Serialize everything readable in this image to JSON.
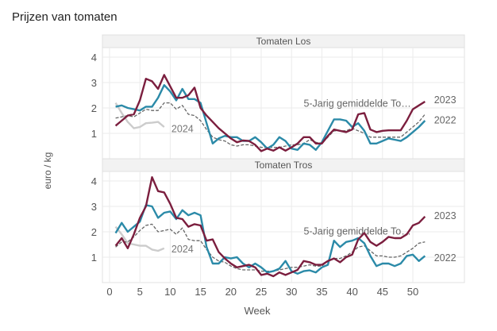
{
  "chart_data": {
    "type": "line",
    "title": "Prijzen van tomaten",
    "xlabel": "Week",
    "ylabel": "euro / kg",
    "xlim": [
      0,
      52
    ],
    "ylim": [
      0,
      4.3
    ],
    "x_ticks": [
      0,
      5,
      10,
      15,
      20,
      25,
      30,
      35,
      40,
      45,
      50
    ],
    "y_ticks": [
      1,
      2,
      3,
      4
    ],
    "grid": true,
    "colors": {
      "2023": "#7b1e3e",
      "2022": "#2b8aa8",
      "avg": "#666666",
      "2024": "#cccccc"
    },
    "panels": [
      {
        "title": "Tomaten Los",
        "series": [
          {
            "name": "2023",
            "label": "2023",
            "start_week": 1,
            "values": [
              1.3,
              1.5,
              1.7,
              1.75,
              2.3,
              3.15,
              3.05,
              2.75,
              3.3,
              2.85,
              2.4,
              2.4,
              2.5,
              2.8,
              2.0,
              1.7,
              1.45,
              1.2,
              1.0,
              0.8,
              0.65,
              0.72,
              0.7,
              0.55,
              0.3,
              0.4,
              0.32,
              0.45,
              0.32,
              0.45,
              0.6,
              0.85,
              0.85,
              0.6,
              0.6,
              0.9,
              1.15,
              1.1,
              1.05,
              1.15,
              1.75,
              1.8,
              1.15,
              1.05,
              1.1,
              1.12,
              1.12,
              1.12,
              1.5,
              1.95,
              2.1,
              2.25
            ]
          },
          {
            "name": "2022",
            "label": "2022",
            "start_week": 1,
            "values": [
              2.05,
              2.1,
              2.0,
              1.95,
              1.9,
              2.05,
              2.05,
              2.4,
              2.9,
              2.65,
              2.3,
              2.75,
              2.35,
              2.35,
              2.2,
              1.4,
              0.6,
              0.8,
              0.9,
              0.85,
              0.85,
              0.7,
              0.7,
              0.85,
              0.65,
              0.4,
              0.55,
              0.85,
              0.7,
              0.4,
              0.35,
              0.6,
              0.55,
              0.35,
              0.65,
              1.1,
              1.55,
              1.55,
              1.5,
              1.25,
              1.4,
              1.1,
              0.6,
              0.6,
              0.7,
              0.8,
              0.75,
              0.7,
              0.85,
              1.05,
              1.25,
              1.5
            ]
          },
          {
            "name": "avg",
            "label": "5-Jarig gemiddelde To…",
            "start_week": 1,
            "values": [
              1.6,
              1.65,
              1.7,
              1.65,
              1.8,
              1.95,
              1.9,
              1.9,
              2.2,
              2.2,
              1.95,
              2.1,
              1.75,
              1.7,
              1.5,
              1.15,
              0.85,
              0.75,
              0.7,
              0.55,
              0.5,
              0.55,
              0.55,
              0.5,
              0.45,
              0.45,
              0.45,
              0.45,
              0.5,
              0.55,
              0.55,
              0.6,
              0.75,
              0.65,
              0.6,
              0.85,
              1.1,
              1.1,
              1.1,
              1.2,
              1.1,
              1.0,
              0.85,
              0.85,
              0.85,
              0.85,
              0.85,
              0.85,
              1.05,
              1.25,
              1.45,
              1.75
            ]
          },
          {
            "name": "2024",
            "label": "2024",
            "start_week": 1,
            "values": [
              2.2,
              1.8,
              1.45,
              1.2,
              1.25,
              1.4,
              1.42,
              1.45,
              1.25
            ]
          }
        ]
      },
      {
        "title": "Tomaten Tros",
        "series": [
          {
            "name": "2023",
            "label": "2023",
            "start_week": 1,
            "values": [
              1.45,
              1.75,
              1.35,
              1.9,
              2.55,
              3.0,
              4.15,
              3.6,
              3.55,
              3.1,
              2.55,
              2.5,
              2.2,
              2.3,
              2.25,
              1.65,
              1.7,
              1.2,
              0.95,
              0.75,
              0.6,
              0.65,
              0.7,
              0.6,
              0.3,
              0.35,
              0.25,
              0.4,
              0.3,
              0.4,
              0.5,
              0.85,
              0.8,
              0.7,
              0.7,
              0.85,
              0.95,
              0.8,
              1.0,
              1.1,
              1.7,
              1.95,
              1.6,
              1.45,
              1.6,
              1.8,
              1.75,
              1.75,
              1.9,
              2.25,
              2.35,
              2.6
            ]
          },
          {
            "name": "2022",
            "label": "2022",
            "start_week": 1,
            "values": [
              1.95,
              2.35,
              2.0,
              2.2,
              2.4,
              3.05,
              3.0,
              2.55,
              2.75,
              2.8,
              2.5,
              2.85,
              2.65,
              2.75,
              2.65,
              1.4,
              0.75,
              0.75,
              1.0,
              0.95,
              1.0,
              0.75,
              0.6,
              0.75,
              0.6,
              0.4,
              0.45,
              0.55,
              0.85,
              0.45,
              0.35,
              0.45,
              0.48,
              0.4,
              0.6,
              0.7,
              1.65,
              1.4,
              1.6,
              1.65,
              1.75,
              1.55,
              1.05,
              0.65,
              0.75,
              0.75,
              0.65,
              0.75,
              1.05,
              1.1,
              0.85,
              1.05
            ]
          },
          {
            "name": "avg",
            "label": "5-Jarig gemiddelde To…",
            "start_week": 1,
            "values": [
              1.4,
              1.6,
              1.6,
              1.8,
              2.05,
              2.25,
              2.3,
              2.0,
              2.05,
              2.1,
              1.9,
              2.15,
              1.7,
              1.65,
              1.65,
              1.3,
              1.0,
              0.85,
              0.8,
              0.65,
              0.55,
              0.5,
              0.5,
              0.5,
              0.45,
              0.45,
              0.45,
              0.5,
              0.55,
              0.6,
              0.6,
              0.65,
              0.7,
              0.65,
              0.65,
              0.85,
              0.95,
              0.95,
              1.05,
              1.2,
              1.4,
              1.45,
              1.25,
              1.05,
              1.05,
              1.0,
              1.0,
              1.05,
              1.2,
              1.35,
              1.55,
              1.6
            ]
          },
          {
            "name": "2024",
            "label": "2024",
            "start_week": 1,
            "values": [
              2.2,
              1.9,
              1.55,
              1.5,
              1.45,
              1.45,
              1.3,
              1.25,
              1.35
            ]
          }
        ]
      }
    ]
  }
}
